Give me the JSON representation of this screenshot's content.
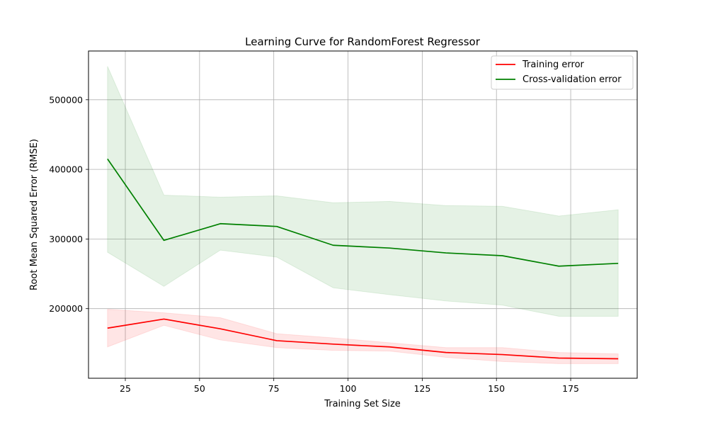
{
  "chart_data": {
    "type": "line",
    "title": "Learning Curve for RandomForest Regressor",
    "xlabel": "Training Set Size",
    "ylabel": "Root Mean Squared Error (RMSE)",
    "xlim": [
      12.6,
      197.4
    ],
    "ylim": [
      100000,
      570000
    ],
    "x_ticks": [
      25,
      50,
      75,
      100,
      125,
      150,
      175
    ],
    "x_tick_labels": [
      "25",
      "50",
      "75",
      "100",
      "125",
      "150",
      "175"
    ],
    "y_ticks": [
      200000,
      300000,
      400000,
      500000
    ],
    "y_tick_labels": [
      "200000",
      "300000",
      "400000",
      "500000"
    ],
    "grid": true,
    "legend_position": "top-right",
    "x": [
      19,
      38,
      57,
      76,
      95,
      114,
      133,
      152,
      171,
      191
    ],
    "series": [
      {
        "name": "Training error",
        "color": "#ff0000",
        "band_color": "#ff0000",
        "values": [
          172000,
          185000,
          171000,
          154000,
          149000,
          145000,
          137000,
          134000,
          129000,
          128000
        ],
        "upper": [
          199000,
          194000,
          187000,
          164000,
          158000,
          151000,
          144000,
          144000,
          137000,
          135000
        ],
        "lower": [
          145000,
          176000,
          155000,
          144000,
          140000,
          139000,
          130000,
          124000,
          121000,
          121000
        ]
      },
      {
        "name": "Cross-validation error",
        "color": "#008000",
        "band_color": "#008000",
        "values": [
          415000,
          298000,
          322000,
          318000,
          291000,
          287000,
          280000,
          276000,
          261000,
          265000
        ],
        "upper": [
          548000,
          363000,
          360000,
          362000,
          352000,
          354000,
          348000,
          347000,
          333000,
          342000
        ],
        "lower": [
          281000,
          232000,
          284000,
          274000,
          230000,
          220000,
          211000,
          205000,
          189000,
          189000
        ]
      }
    ]
  }
}
